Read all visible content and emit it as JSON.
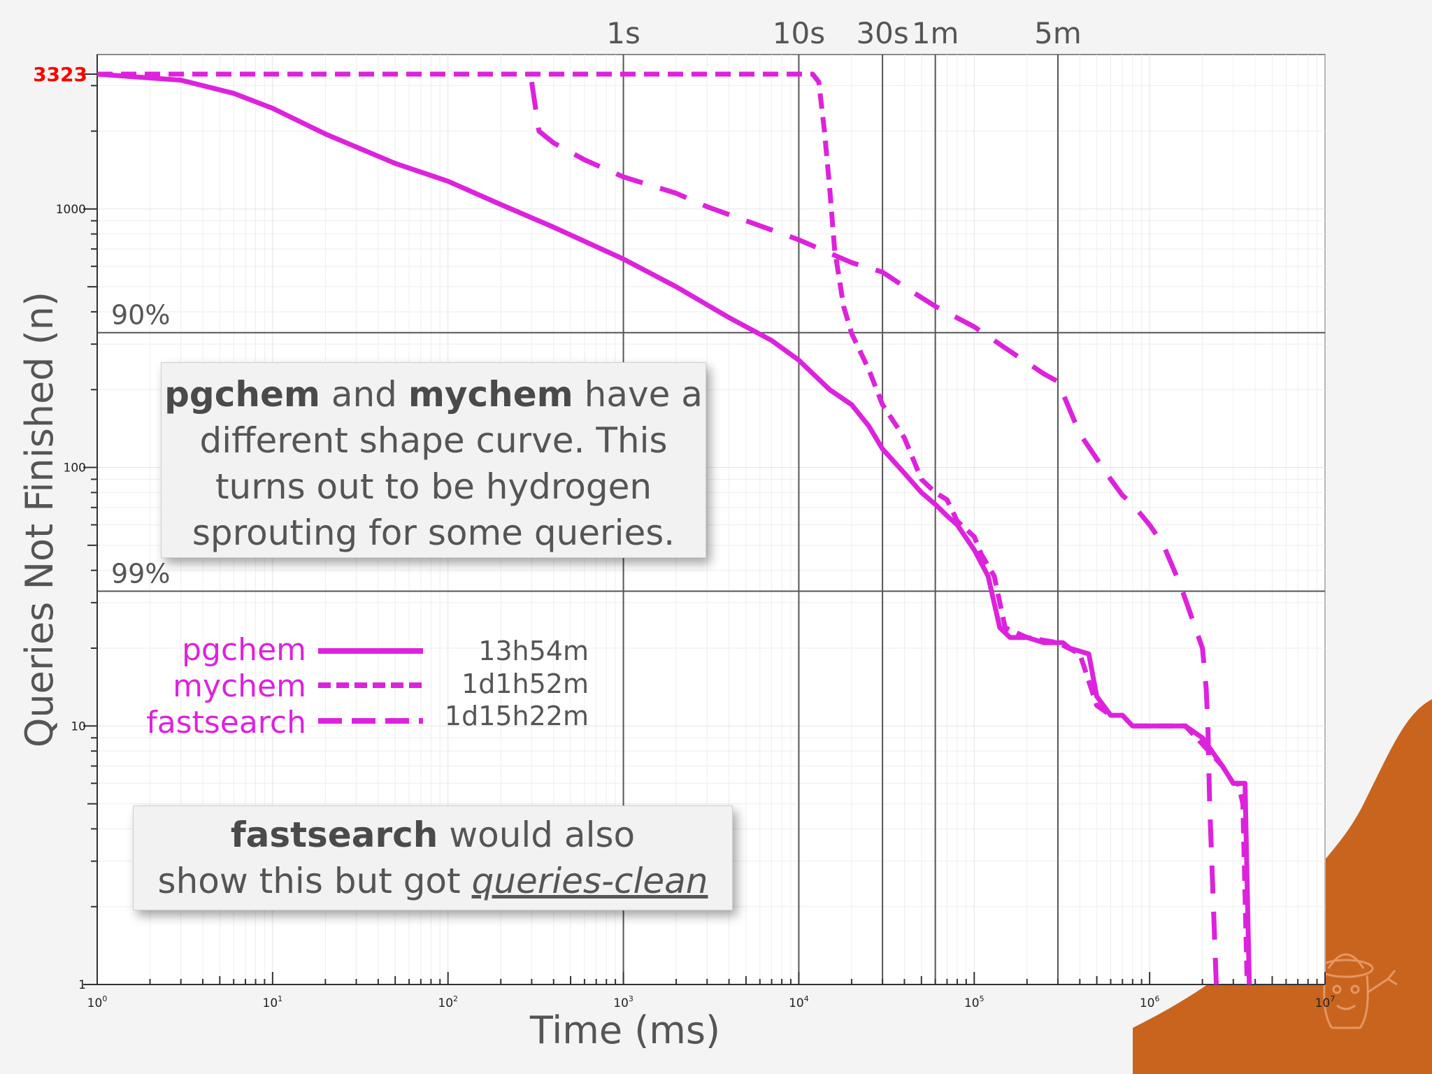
{
  "chart_data": {
    "type": "line",
    "xlabel": "Time (ms)",
    "ylabel": "Queries Not Finished (n)",
    "x_scale": "log",
    "y_scale": "log",
    "xlim": [
      1,
      10000000
    ],
    "ylim": [
      1,
      3323
    ],
    "x_ticks": [
      {
        "value": 1,
        "label": "10",
        "exp": "0"
      },
      {
        "value": 10,
        "label": "10",
        "exp": "1"
      },
      {
        "value": 100,
        "label": "10",
        "exp": "2"
      },
      {
        "value": 1000,
        "label": "10",
        "exp": "3"
      },
      {
        "value": 10000,
        "label": "10",
        "exp": "4"
      },
      {
        "value": 100000,
        "label": "10",
        "exp": "5"
      },
      {
        "value": 1000000,
        "label": "10",
        "exp": "6"
      },
      {
        "value": 10000000,
        "label": "10",
        "exp": "7"
      }
    ],
    "y_ticks": [
      {
        "value": 1,
        "label": "1"
      },
      {
        "value": 10,
        "label": "10"
      },
      {
        "value": 100,
        "label": "100"
      },
      {
        "value": 1000,
        "label": "1000"
      }
    ],
    "y_max_label": {
      "value": 3323,
      "label": "3323",
      "color": "#ff0000"
    },
    "time_markers": [
      {
        "value": 1000,
        "label": "1s"
      },
      {
        "value": 10000,
        "label": "10s"
      },
      {
        "value": 30000,
        "label": "30s"
      },
      {
        "value": 60000,
        "label": "1m"
      },
      {
        "value": 300000,
        "label": "5m"
      }
    ],
    "percentile_lines": [
      {
        "value": 332.3,
        "label": "90%"
      },
      {
        "value": 33.23,
        "label": "99%"
      }
    ],
    "grid": true,
    "series": [
      {
        "name": "pgchem",
        "total_time": "13h54m",
        "style": "solid",
        "color": "#dd22dd",
        "points": [
          [
            1,
            3323
          ],
          [
            3,
            3150
          ],
          [
            6,
            2800
          ],
          [
            10,
            2450
          ],
          [
            20,
            1950
          ],
          [
            50,
            1500
          ],
          [
            100,
            1280
          ],
          [
            200,
            1040
          ],
          [
            400,
            850
          ],
          [
            1000,
            640
          ],
          [
            2000,
            500
          ],
          [
            4000,
            380
          ],
          [
            7000,
            310
          ],
          [
            10000,
            260
          ],
          [
            15000,
            200
          ],
          [
            20000,
            175
          ],
          [
            25000,
            145
          ],
          [
            30000,
            118
          ],
          [
            40000,
            95
          ],
          [
            50000,
            80
          ],
          [
            60000,
            72
          ],
          [
            70000,
            65
          ],
          [
            80000,
            60
          ],
          [
            100000,
            48
          ],
          [
            120000,
            38
          ],
          [
            140000,
            24
          ],
          [
            160000,
            22
          ],
          [
            200000,
            22
          ],
          [
            250000,
            21
          ],
          [
            320000,
            21
          ],
          [
            350000,
            20
          ],
          [
            450000,
            19
          ],
          [
            500000,
            13
          ],
          [
            600000,
            11
          ],
          [
            700000,
            11
          ],
          [
            800000,
            10
          ],
          [
            1000000,
            10
          ],
          [
            1200000,
            10
          ],
          [
            1600000,
            10
          ],
          [
            2000000,
            9
          ],
          [
            2600000,
            7
          ],
          [
            3000000,
            6
          ],
          [
            3400000,
            6
          ],
          [
            3500000,
            6
          ],
          [
            3700000,
            1
          ]
        ]
      },
      {
        "name": "mychem",
        "total_time": "1d1h52m",
        "style": "dashed",
        "color": "#dd22dd",
        "points": [
          [
            1,
            3323
          ],
          [
            12000,
            3323
          ],
          [
            13000,
            3100
          ],
          [
            14000,
            2000
          ],
          [
            15000,
            1200
          ],
          [
            16000,
            700
          ],
          [
            18000,
            420
          ],
          [
            20000,
            330
          ],
          [
            25000,
            240
          ],
          [
            30000,
            175
          ],
          [
            40000,
            130
          ],
          [
            50000,
            90
          ],
          [
            60000,
            80
          ],
          [
            70000,
            75
          ],
          [
            80000,
            62
          ],
          [
            100000,
            54
          ],
          [
            110000,
            46
          ],
          [
            130000,
            38
          ],
          [
            150000,
            24
          ],
          [
            200000,
            22
          ],
          [
            300000,
            21
          ],
          [
            400000,
            19
          ],
          [
            500000,
            12
          ],
          [
            600000,
            11
          ],
          [
            700000,
            11
          ],
          [
            800000,
            10
          ],
          [
            1000000,
            10
          ],
          [
            1600000,
            10
          ],
          [
            2000000,
            8.5
          ],
          [
            2600000,
            7
          ],
          [
            3000000,
            6
          ],
          [
            3200000,
            6
          ],
          [
            3400000,
            5
          ],
          [
            3600000,
            1
          ]
        ]
      },
      {
        "name": "fastsearch",
        "total_time": "1d15h22m",
        "style": "long-dashed",
        "color": "#dd22dd",
        "points": [
          [
            300,
            3100
          ],
          [
            330,
            2000
          ],
          [
            400,
            1800
          ],
          [
            600,
            1550
          ],
          [
            1000,
            1330
          ],
          [
            2000,
            1150
          ],
          [
            3000,
            1020
          ],
          [
            5000,
            900
          ],
          [
            10000,
            760
          ],
          [
            20000,
            620
          ],
          [
            30000,
            570
          ],
          [
            40000,
            500
          ],
          [
            60000,
            420
          ],
          [
            100000,
            350
          ],
          [
            150000,
            290
          ],
          [
            250000,
            230
          ],
          [
            300000,
            215
          ],
          [
            400000,
            135
          ],
          [
            500000,
            108
          ],
          [
            600000,
            90
          ],
          [
            700000,
            78
          ],
          [
            800000,
            72
          ],
          [
            1000000,
            60
          ],
          [
            1200000,
            50
          ],
          [
            1500000,
            35
          ],
          [
            2000000,
            20
          ],
          [
            2100000,
            14
          ],
          [
            2150000,
            10
          ],
          [
            2200000,
            5
          ],
          [
            2400000,
            1
          ]
        ]
      }
    ]
  },
  "annotations": {
    "callout1": {
      "l1_b1": "pgchem",
      "l1_t1": " and ",
      "l1_b2": "mychem",
      "l1_t2": " have a",
      "l2": "different shape curve. This",
      "l3": "turns out to be hydrogen",
      "l4": "sprouting for some queries."
    },
    "callout2": {
      "l1_b": "fastsearch",
      "l1_t": " would also",
      "l2_t": "show this but got ",
      "l2_link": "queries-clean"
    }
  },
  "colors": {
    "series": "#dd22dd",
    "accent_red": "#ff0000",
    "corner_decoration": "#c9641f"
  },
  "decoration": {
    "icon": "mascot-logo-icon"
  }
}
